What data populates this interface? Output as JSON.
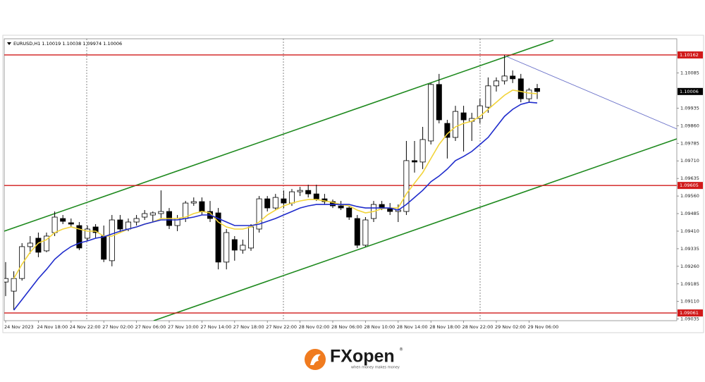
{
  "chart_data": {
    "type": "candlestick",
    "title": "EURUSD,H1  1.10019 1.10038 1.09974 1.10006",
    "categories": [
      "24 Nov 2023",
      null,
      null,
      null,
      "24 Nov 18:00",
      null,
      null,
      null,
      "24 Nov 22:00",
      null,
      null,
      null,
      "27 Nov 02:00",
      null,
      null,
      null,
      "27 Nov 06:00",
      null,
      null,
      null,
      "27 Nov 10:00",
      null,
      null,
      null,
      "27 Nov 14:00",
      null,
      null,
      null,
      "27 Nov 18:00",
      null,
      null,
      null,
      "27 Nov 22:00",
      null,
      null,
      null,
      "28 Nov 02:00",
      null,
      null,
      null,
      "28 Nov 06:00",
      null,
      null,
      null,
      "28 Nov 10:00",
      null,
      null,
      null,
      "28 Nov 14:00",
      null,
      null,
      null,
      "28 Nov 18:00",
      null,
      null,
      null,
      "28 Nov 22:00",
      null,
      null,
      null,
      "29 Nov 02:00",
      null,
      null,
      null,
      "29 Nov 06:00",
      null
    ],
    "open": [
      1.09193,
      1.09154,
      1.09208,
      1.09344,
      1.0938,
      1.09326,
      1.09404,
      1.09464,
      1.09446,
      1.09434,
      1.0938,
      1.09428,
      1.09389,
      1.09284,
      1.09458,
      1.09419,
      1.09449,
      1.0947,
      1.09479,
      1.09485,
      1.09494,
      1.09434,
      1.09464,
      1.0953,
      1.09536,
      1.09494,
      1.09488,
      1.09278,
      1.09374,
      1.09329,
      1.09338,
      1.09419,
      1.09548,
      1.09509,
      1.09548,
      1.0953,
      1.09578,
      1.09584,
      1.09569,
      1.09548,
      1.09536,
      1.09518,
      1.09509,
      1.09464,
      1.0935,
      1.09464,
      1.09524,
      1.09509,
      1.09494,
      1.09494,
      1.09711,
      1.09705,
      1.09795,
      1.10036,
      1.0987,
      1.0981,
      1.09915,
      1.09879,
      1.09891,
      1.09939,
      1.1003,
      1.10051,
      1.10072,
      1.1006,
      1.09975,
      1.10019
    ],
    "high": [
      1.09278,
      1.09239,
      1.09359,
      1.09389,
      1.09404,
      1.09404,
      1.09494,
      1.09479,
      1.09464,
      1.09449,
      1.09434,
      1.0944,
      1.09434,
      1.09479,
      1.09479,
      1.09464,
      1.09479,
      1.095,
      1.09494,
      1.09584,
      1.09509,
      1.09479,
      1.09539,
      1.09554,
      1.09554,
      1.09539,
      1.09509,
      1.09419,
      1.09389,
      1.09374,
      1.0944,
      1.0956,
      1.0956,
      1.09569,
      1.09584,
      1.0959,
      1.09599,
      1.09608,
      1.09608,
      1.09569,
      1.09545,
      1.09539,
      1.09518,
      1.09479,
      1.0947,
      1.09539,
      1.09539,
      1.0953,
      1.09524,
      1.09795,
      1.09795,
      1.09855,
      1.10042,
      1.10081,
      1.09885,
      1.09945,
      1.09945,
      1.09915,
      1.09975,
      1.10066,
      1.10066,
      1.10162,
      1.10096,
      1.10081,
      1.10021,
      1.10038
    ],
    "low": [
      1.09133,
      1.09073,
      1.09199,
      1.09314,
      1.09299,
      1.0932,
      1.09389,
      1.0944,
      1.09428,
      1.09329,
      1.09368,
      1.0938,
      1.09278,
      1.0926,
      1.09404,
      1.0941,
      1.09434,
      1.09458,
      1.09449,
      1.09464,
      1.09419,
      1.0941,
      1.09449,
      1.09518,
      1.09479,
      1.09449,
      1.09247,
      1.09247,
      1.09284,
      1.09314,
      1.09326,
      1.09404,
      1.09494,
      1.095,
      1.09509,
      1.09518,
      1.0956,
      1.09554,
      1.09539,
      1.09524,
      1.09509,
      1.095,
      1.09458,
      1.09338,
      1.09344,
      1.09449,
      1.095,
      1.09479,
      1.09449,
      1.09479,
      1.0966,
      1.09675,
      1.0978,
      1.0987,
      1.0972,
      1.09795,
      1.0975,
      1.09795,
      1.0987,
      1.09915,
      1.10006,
      1.10036,
      1.10042,
      1.0996,
      1.0996,
      1.09974
    ],
    "close": [
      1.09208,
      1.09208,
      1.09344,
      1.09359,
      1.0932,
      1.09389,
      1.0947,
      1.09452,
      1.0944,
      1.09338,
      1.09419,
      1.09404,
      1.0929,
      1.09458,
      1.09419,
      1.09449,
      1.09464,
      1.09485,
      1.09488,
      1.09494,
      1.09434,
      1.09464,
      1.0953,
      1.09536,
      1.09494,
      1.09464,
      1.09278,
      1.09404,
      1.09329,
      1.0935,
      1.09428,
      1.09548,
      1.09509,
      1.09554,
      1.0953,
      1.09578,
      1.09584,
      1.09569,
      1.09548,
      1.09536,
      1.09518,
      1.09509,
      1.0947,
      1.0935,
      1.09458,
      1.09524,
      1.09509,
      1.09494,
      1.095,
      1.09711,
      1.09705,
      1.09801,
      1.10036,
      1.09885,
      1.0981,
      1.09921,
      1.09885,
      1.09891,
      1.09945,
      1.1003,
      1.10051,
      1.10072,
      1.1006,
      1.09975,
      1.10012,
      1.10006
    ],
    "up_color": "#ffffff",
    "down_color": "#000000",
    "series": [
      {
        "color": "#f2d43a",
        "values": [
          null,
          1.09208,
          1.09269,
          1.0932,
          1.09359,
          1.09374,
          1.09404,
          1.09419,
          1.09428,
          1.09419,
          1.0941,
          1.0941,
          1.09389,
          1.09389,
          1.09404,
          1.09419,
          1.09428,
          1.0944,
          1.09449,
          1.09464,
          1.09464,
          1.09464,
          1.0947,
          1.09485,
          1.09494,
          1.09488,
          1.09449,
          1.09428,
          1.09419,
          1.09419,
          1.09428,
          1.09449,
          1.09479,
          1.095,
          1.09518,
          1.0953,
          1.09539,
          1.09545,
          1.09545,
          1.09539,
          1.09533,
          1.09524,
          1.09518,
          1.095,
          1.09488,
          1.09494,
          1.09506,
          1.09509,
          1.09509,
          1.09569,
          1.09615,
          1.0966,
          1.0972,
          1.0978,
          1.09825,
          1.09855,
          1.0987,
          1.09879,
          1.099,
          1.0993,
          1.0996,
          1.0999,
          1.10012,
          1.10006,
          1.09999,
          1.09996
        ]
      },
      {
        "color": "#1f2ccc",
        "values": [
          null,
          1.09073,
          1.09118,
          1.09163,
          1.09208,
          1.09247,
          1.0929,
          1.0932,
          1.09344,
          1.09359,
          1.09368,
          1.0938,
          1.09386,
          1.09398,
          1.0941,
          1.09419,
          1.09428,
          1.0944,
          1.09449,
          1.09458,
          1.09458,
          1.09458,
          1.09464,
          1.0947,
          1.09479,
          1.09479,
          1.09464,
          1.09449,
          1.09434,
          1.09434,
          1.09434,
          1.0944,
          1.09452,
          1.09464,
          1.09479,
          1.09494,
          1.09509,
          1.09518,
          1.09524,
          1.09524,
          1.09524,
          1.09524,
          1.09524,
          1.09515,
          1.09509,
          1.09509,
          1.09509,
          1.09509,
          1.095,
          1.09524,
          1.09554,
          1.09584,
          1.09621,
          1.09645,
          1.09675,
          1.09711,
          1.09729,
          1.0975,
          1.0978,
          1.0981,
          1.09855,
          1.099,
          1.0993,
          1.09951,
          1.0996,
          1.09957
        ]
      }
    ],
    "levels": [
      {
        "value": 1.10162,
        "color": "#d11a1a"
      },
      {
        "value": 1.09605,
        "color": "#d11a1a"
      },
      {
        "value": 1.09061,
        "color": "#d11a1a"
      }
    ],
    "current_price": {
      "value": 1.10006,
      "color": "#000000"
    },
    "ylim": [
      1.09028,
      1.10231
    ],
    "yticks": [
      1.09035,
      {
        "value": 1.0911,
        "label": "1.09110"
      },
      1.09185,
      {
        "value": 1.0926,
        "label": "1.09260"
      },
      1.09335,
      {
        "value": 1.0941,
        "label": "1.09410"
      },
      1.09485,
      {
        "value": 1.0956,
        "label": "1.09560"
      },
      1.09635,
      {
        "value": 1.0971,
        "label": "1.09710"
      },
      1.09785,
      {
        "value": 1.0986,
        "label": "1.09860"
      },
      1.09935,
      1.10085
    ]
  },
  "brand": {
    "name": "FXopen",
    "mark": "®",
    "tagline": "when money makes money"
  }
}
